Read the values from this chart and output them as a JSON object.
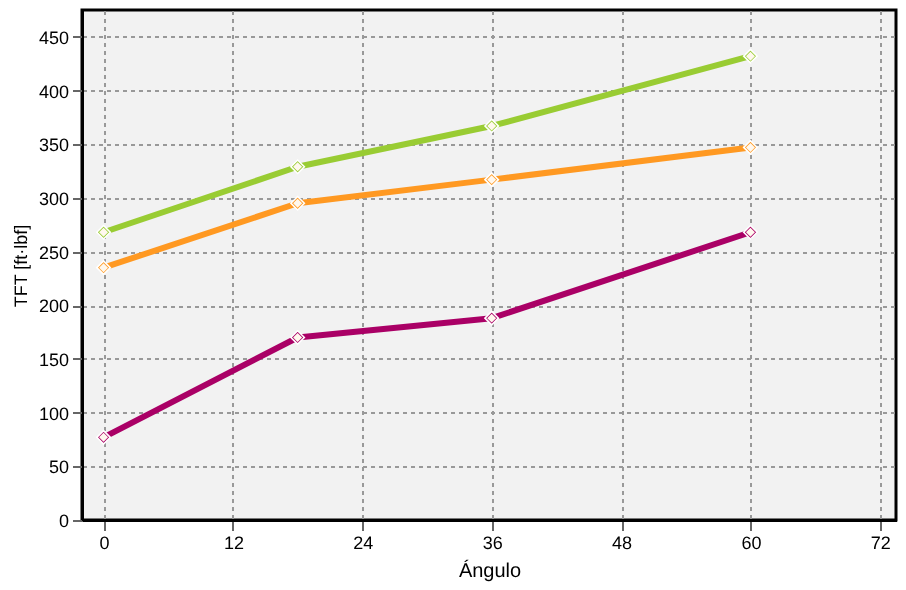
{
  "chart_data": {
    "type": "line",
    "xlabel": "Ángulo",
    "ylabel": "TFT [ft·lbf]",
    "x": [
      0,
      18,
      36,
      60
    ],
    "series": [
      {
        "color": "#99cc33",
        "values": [
          268,
          329,
          367,
          432
        ]
      },
      {
        "color": "#ff9922",
        "values": [
          235,
          295,
          317,
          347
        ]
      },
      {
        "color": "#aa0066",
        "values": [
          77,
          170,
          188,
          268
        ]
      }
    ],
    "xlim": [
      -2,
      73.5
    ],
    "xticks": [
      0,
      12,
      24,
      36,
      48,
      60,
      72
    ],
    "ylim": [
      0,
      475
    ],
    "yticks": [
      0,
      50,
      100,
      150,
      200,
      250,
      300,
      350,
      400,
      450
    ],
    "grid": true,
    "marker": "diamond",
    "line_style": "solid",
    "legend": false
  }
}
